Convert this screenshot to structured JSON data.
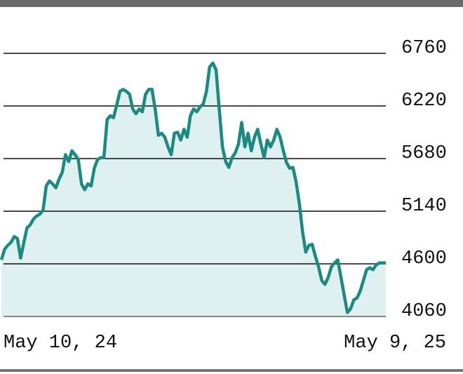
{
  "chart_data": {
    "type": "area",
    "categories": [
      "May 10, 24",
      null,
      null,
      null,
      null,
      null,
      null,
      null,
      null,
      null,
      null,
      null,
      null,
      null,
      null,
      null,
      null,
      null,
      null,
      null,
      null,
      null,
      null,
      null,
      null,
      null,
      null,
      null,
      null,
      null,
      null,
      null,
      null,
      null,
      null,
      null,
      null,
      null,
      null,
      null,
      null,
      null,
      null,
      null,
      null,
      null,
      null,
      null,
      null,
      null,
      null,
      null,
      null,
      null,
      null,
      null,
      null,
      null,
      null,
      null,
      null,
      null,
      null,
      null,
      null,
      null,
      null,
      null,
      null,
      null,
      null,
      null,
      null,
      null,
      null,
      null,
      null,
      null,
      null,
      null,
      null,
      null,
      null,
      null,
      null,
      null,
      null,
      null,
      null,
      null,
      null,
      null,
      null,
      null,
      null,
      null,
      null,
      null,
      null,
      null,
      null,
      null,
      null,
      null,
      null,
      null,
      null,
      null,
      null,
      null,
      null,
      null,
      null,
      null,
      null,
      null,
      null,
      null,
      null,
      null,
      "May 9, 25"
    ],
    "values": [
      4640,
      4750,
      4790,
      4820,
      4880,
      4860,
      4660,
      4820,
      4970,
      5000,
      5060,
      5090,
      5110,
      5150,
      5400,
      5450,
      5420,
      5380,
      5470,
      5540,
      5720,
      5650,
      5760,
      5720,
      5670,
      5420,
      5360,
      5420,
      5400,
      5580,
      5670,
      5690,
      5690,
      6080,
      6120,
      6100,
      6230,
      6370,
      6390,
      6370,
      6340,
      6190,
      6140,
      6190,
      6160,
      6340,
      6390,
      6390,
      6190,
      5920,
      5940,
      5900,
      5800,
      5720,
      5940,
      5950,
      5870,
      5980,
      5900,
      6120,
      6190,
      6160,
      6210,
      6240,
      6370,
      6620,
      6660,
      6590,
      6190,
      5800,
      5650,
      5590,
      5690,
      5740,
      5830,
      6050,
      5800,
      5940,
      5760,
      5900,
      5980,
      5830,
      5690,
      5870,
      5800,
      5870,
      5980,
      5900,
      5760,
      5640,
      5580,
      5590,
      5440,
      5220,
      4930,
      4720,
      4790,
      4800,
      4680,
      4570,
      4430,
      4390,
      4460,
      4570,
      4610,
      4640,
      4460,
      4280,
      4100,
      4140,
      4230,
      4250,
      4320,
      4430,
      4540,
      4560,
      4540,
      4590,
      4610,
      4610,
      4610
    ],
    "color": "#1b8a80",
    "fill": "#def0f0",
    "ylim": [
      4060,
      6760
    ],
    "yticks": [
      4060,
      4600,
      5140,
      5680,
      6220,
      6760
    ],
    "grid": true
  }
}
